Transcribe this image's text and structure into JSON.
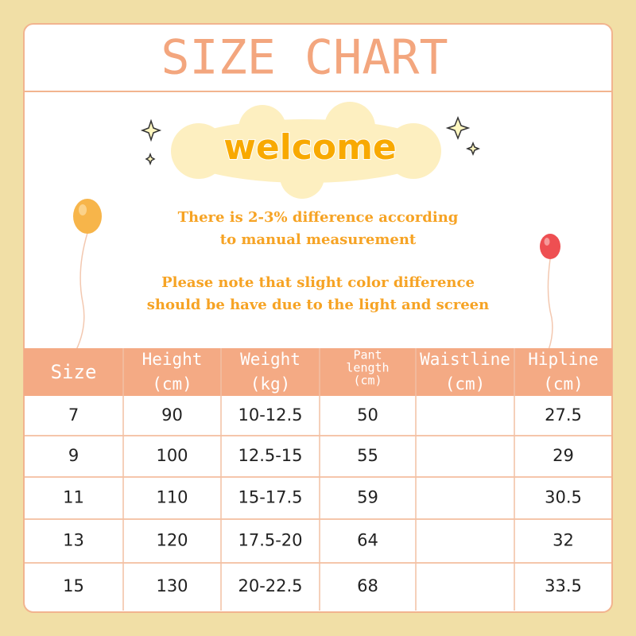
{
  "header": {
    "title": "SIZE CHART"
  },
  "welcome": "welcome",
  "notes": [
    [
      "There is 2-3% difference according",
      "to manual measurement"
    ],
    [
      "Please note that slight color difference",
      "should be have due to the light and screen"
    ]
  ],
  "table": {
    "columns": [
      [
        "Size"
      ],
      [
        "Height",
        "(cm)"
      ],
      [
        "Weight",
        "(kg)"
      ],
      [
        "Pant",
        "length",
        "(cm)"
      ],
      [
        "Waistline",
        "(cm)"
      ],
      [
        "Hipline",
        "(cm)"
      ]
    ],
    "rows": [
      [
        "7",
        "90",
        "10-12.5",
        "50",
        null,
        "27.5"
      ],
      [
        "9",
        "100",
        "12.5-15",
        "55",
        null,
        "29"
      ],
      [
        "11",
        "110",
        "15-17.5",
        "59",
        null,
        "30.5"
      ],
      [
        "13",
        "120",
        "17.5-20",
        "64",
        null,
        "32"
      ],
      [
        "15",
        "130",
        "20-22.5",
        "68",
        null,
        "33.5"
      ]
    ]
  }
}
